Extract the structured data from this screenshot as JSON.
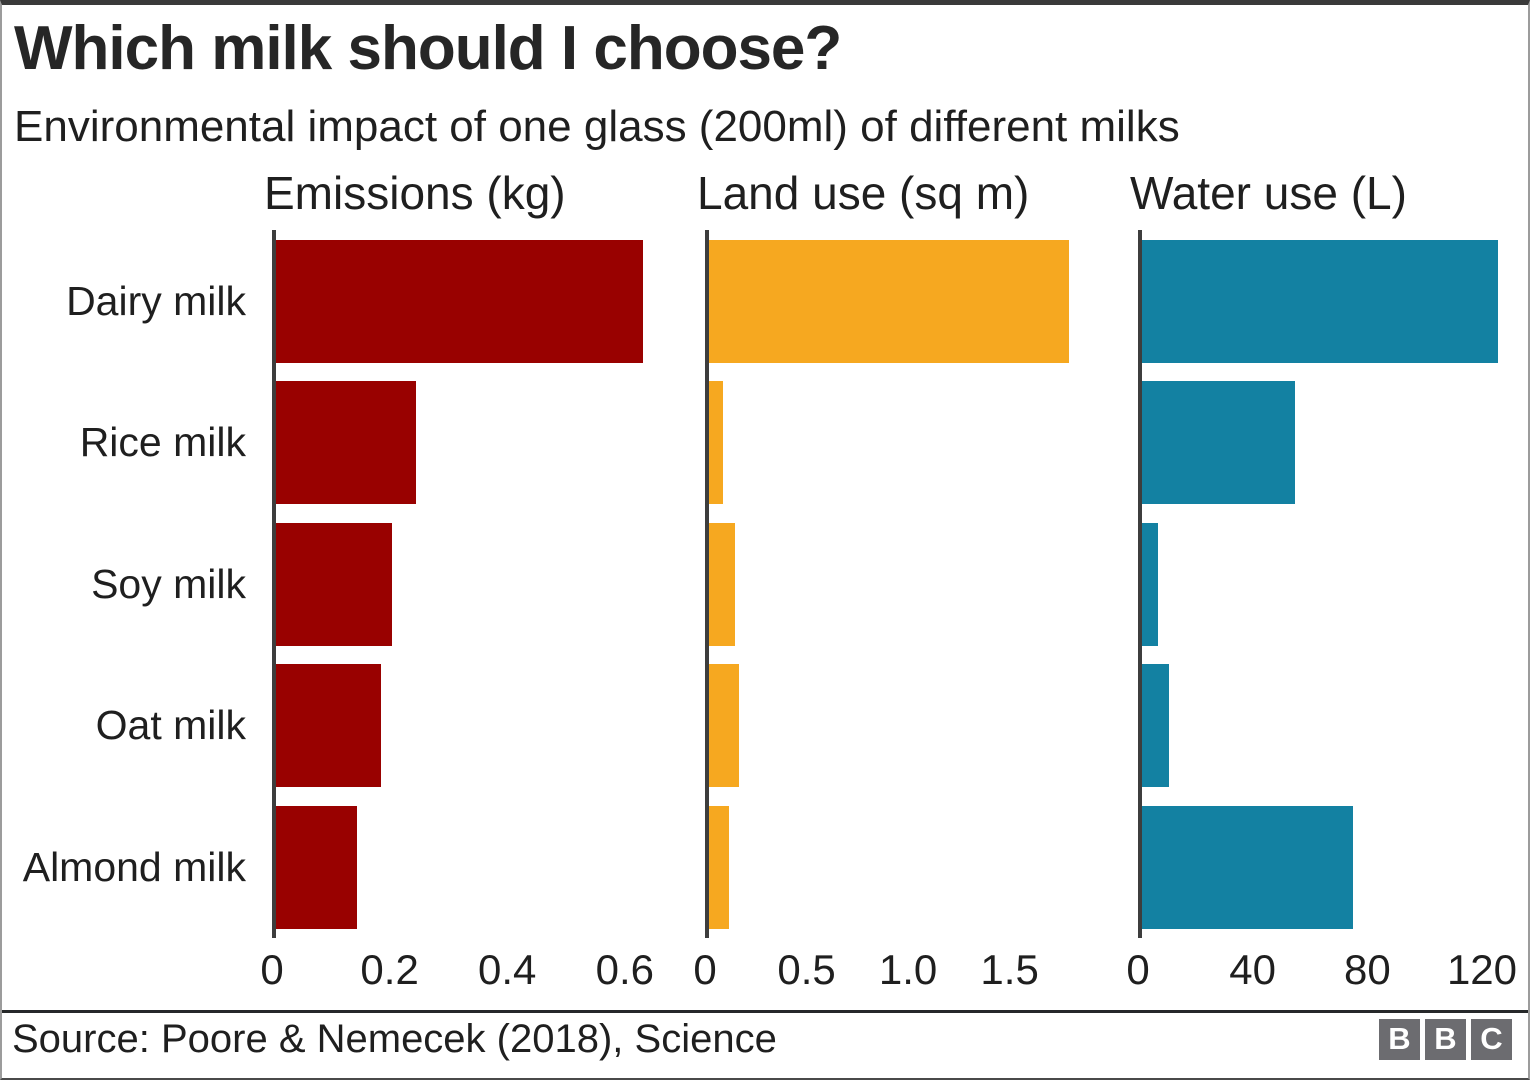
{
  "chart_data": {
    "type": "bar",
    "orientation": "horizontal",
    "title": "Which milk should I choose?",
    "subtitle": "Environmental impact of one glass (200ml) of different milks",
    "categories": [
      "Dairy milk",
      "Rice milk",
      "Soy milk",
      "Oat milk",
      "Almond milk"
    ],
    "grid": false,
    "legend": false,
    "axis_color": "#3d3d3d",
    "panels": [
      {
        "title": "Emissions (kg)",
        "bar_color": "#990100",
        "values": [
          0.63,
          0.24,
          0.2,
          0.18,
          0.14
        ],
        "xmax": 0.67,
        "ticks": [
          {
            "label": "0",
            "value": 0
          },
          {
            "label": "0.2",
            "value": 0.2
          },
          {
            "label": "0.4",
            "value": 0.4
          },
          {
            "label": "0.6",
            "value": 0.6
          }
        ]
      },
      {
        "title": "Land use (sq m)",
        "bar_color": "#f6a820",
        "values": [
          1.79,
          0.07,
          0.13,
          0.15,
          0.1
        ],
        "xmax": 1.94,
        "ticks": [
          {
            "label": "0",
            "value": 0
          },
          {
            "label": "0.5",
            "value": 0.5
          },
          {
            "label": "1.0",
            "value": 1.0
          },
          {
            "label": "1.5",
            "value": 1.5
          }
        ]
      },
      {
        "title": "Water use (L)",
        "bar_color": "#1381a2",
        "values": [
          125.6,
          54,
          5.6,
          9.6,
          74.3
        ],
        "xmax": 135.7,
        "ticks": [
          {
            "label": "0",
            "value": 0
          },
          {
            "label": "40",
            "value": 40
          },
          {
            "label": "80",
            "value": 80
          },
          {
            "label": "120",
            "value": 120
          }
        ]
      }
    ]
  },
  "footer": {
    "source": "Source: Poore & Nemecek (2018), Science",
    "logo_letters": [
      "B",
      "B",
      "C"
    ]
  }
}
